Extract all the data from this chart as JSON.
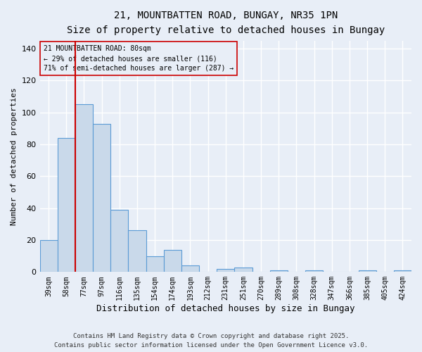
{
  "title_line1": "21, MOUNTBATTEN ROAD, BUNGAY, NR35 1PN",
  "title_line2": "Size of property relative to detached houses in Bungay",
  "xlabel": "Distribution of detached houses by size in Bungay",
  "ylabel": "Number of detached properties",
  "bar_color": "#c9d9ea",
  "bar_edge_color": "#5b9bd5",
  "background_color": "#e8eef7",
  "grid_color": "#ffffff",
  "categories": [
    "39sqm",
    "58sqm",
    "77sqm",
    "97sqm",
    "116sqm",
    "135sqm",
    "154sqm",
    "174sqm",
    "193sqm",
    "212sqm",
    "231sqm",
    "251sqm",
    "270sqm",
    "289sqm",
    "308sqm",
    "328sqm",
    "347sqm",
    "366sqm",
    "385sqm",
    "405sqm",
    "424sqm"
  ],
  "values": [
    20,
    84,
    105,
    93,
    39,
    26,
    10,
    14,
    4,
    0,
    2,
    3,
    0,
    1,
    0,
    1,
    0,
    0,
    1,
    0,
    1
  ],
  "ylim": [
    0,
    145
  ],
  "yticks": [
    0,
    20,
    40,
    60,
    80,
    100,
    120,
    140
  ],
  "property_bin_index": 2,
  "annotation_text_line1": "21 MOUNTBATTEN ROAD: 80sqm",
  "annotation_text_line2": "← 29% of detached houses are smaller (116)",
  "annotation_text_line3": "71% of semi-detached houses are larger (287) →",
  "vline_color": "#cc0000",
  "annotation_box_edge_color": "#cc0000",
  "footer_line1": "Contains HM Land Registry data © Crown copyright and database right 2025.",
  "footer_line2": "Contains public sector information licensed under the Open Government Licence v3.0."
}
